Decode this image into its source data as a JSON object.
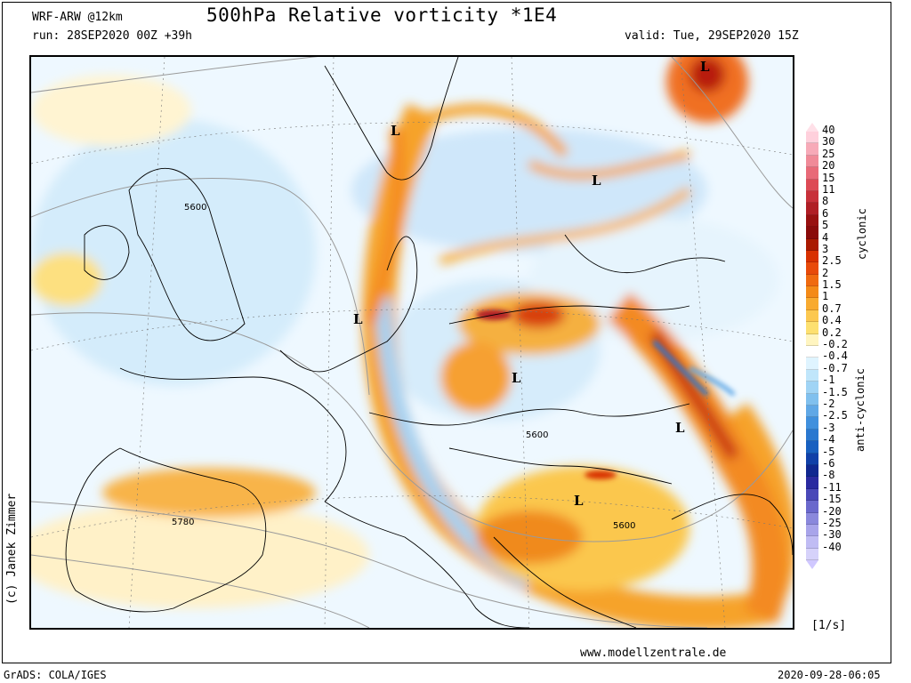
{
  "header": {
    "model": "WRF-ARW @12km",
    "title": "500hPa Relative vorticity *1E4",
    "run": "run: 28SEP2020 00Z +39h",
    "valid": "valid: Tue, 29SEP2020 15Z"
  },
  "map": {
    "credit": "(c) Janek Zimmer",
    "lows": [
      "L",
      "L",
      "L",
      "L",
      "L",
      "L",
      "L"
    ],
    "contours": [
      "5600",
      "5600",
      "5600",
      "5780"
    ]
  },
  "colorbar": {
    "labels": [
      "40",
      "30",
      "25",
      "20",
      "15",
      "11",
      "8",
      "6",
      "5",
      "4",
      "3",
      "2.5",
      "2",
      "1.5",
      "1",
      "0.7",
      "0.4",
      "0.2",
      "-0.2",
      "-0.4",
      "-0.7",
      "-1",
      "-1.5",
      "-2",
      "-2.5",
      "-3",
      "-4",
      "-5",
      "-6",
      "-8",
      "-11",
      "-15",
      "-20",
      "-25",
      "-30",
      "-40"
    ],
    "colors": [
      "#ffd0dc",
      "#f7aab8",
      "#f08a98",
      "#e86a78",
      "#dd4a55",
      "#c8303a",
      "#b01e25",
      "#981010",
      "#8a0a0a",
      "#aa1a00",
      "#d83000",
      "#e84a0a",
      "#f06a10",
      "#f48a18",
      "#f8aa30",
      "#fcc850",
      "#fde070",
      "#fff5c0",
      "#ffffff",
      "#dff4ff",
      "#c0e6fb",
      "#a0d4f5",
      "#80c0ee",
      "#60a8e6",
      "#4090dd",
      "#2a78d0",
      "#1860c0",
      "#1040a8",
      "#102890",
      "#2a2aa0",
      "#4a48b8",
      "#6a68cc",
      "#8a88dc",
      "#a8a4ea",
      "#c0bcf4",
      "#d6d2fa"
    ],
    "cyclonic_label": "cyclonic",
    "anticyclonic_label": "anti-cyclonic",
    "units": "[1/s]"
  },
  "footer": {
    "website": "www.modellzentrale.de",
    "software": "GrADS: COLA/IGES",
    "timestamp": "2020-09-28-06:05"
  }
}
